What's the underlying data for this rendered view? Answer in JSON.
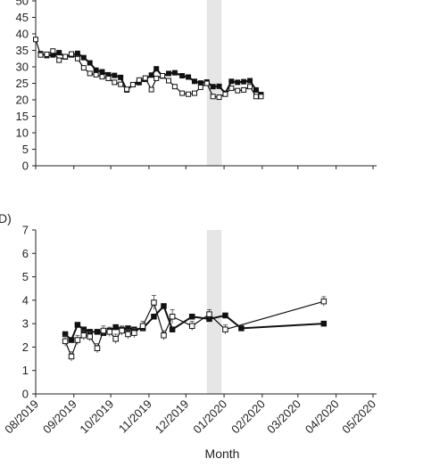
{
  "chart_data": [
    {
      "type": "line",
      "panel_label": "",
      "y_ticks": [
        "0",
        "5",
        "10",
        "15",
        "20",
        "25",
        "30",
        "35",
        "40",
        "45",
        "50"
      ],
      "ylim": [
        0,
        50
      ],
      "x_start": "2019-08-01",
      "x_end": "2020-05-01",
      "highlight_band": [
        "2019-12-18",
        "2019-12-30"
      ],
      "series": [
        {
          "marker": "filled-square",
          "color": "#111111",
          "points": [
            [
              "2019-08-05",
              34.0
            ],
            [
              "2019-08-10",
              33.4
            ],
            [
              "2019-08-15",
              33.6
            ],
            [
              "2019-08-20",
              34.3
            ],
            [
              "2019-08-25",
              33.0
            ],
            [
              "2019-08-30",
              33.6
            ],
            [
              "2019-09-04",
              34.1
            ],
            [
              "2019-09-09",
              32.8
            ],
            [
              "2019-09-14",
              31.2
            ],
            [
              "2019-09-19",
              29.0
            ],
            [
              "2019-09-24",
              28.5
            ],
            [
              "2019-09-29",
              27.6
            ],
            [
              "2019-10-04",
              27.4
            ],
            [
              "2019-10-09",
              26.8
            ],
            [
              "2019-10-14",
              23.0
            ],
            [
              "2019-10-19",
              24.6
            ],
            [
              "2019-10-24",
              25.2
            ],
            [
              "2019-10-29",
              26.2
            ],
            [
              "2019-11-03",
              27.5
            ],
            [
              "2019-11-07",
              29.4
            ],
            [
              "2019-11-12",
              27.2
            ],
            [
              "2019-11-17",
              28.0
            ],
            [
              "2019-11-22",
              28.2
            ],
            [
              "2019-11-28",
              27.3
            ],
            [
              "2019-12-03",
              26.9
            ],
            [
              "2019-12-08",
              25.6
            ],
            [
              "2019-12-13",
              25.1
            ],
            [
              "2019-12-18",
              25.4
            ],
            [
              "2019-12-23",
              24.0
            ],
            [
              "2019-12-28",
              24.1
            ],
            [
              "2020-01-02",
              22.0
            ],
            [
              "2020-01-07",
              25.6
            ],
            [
              "2020-01-12",
              25.3
            ],
            [
              "2020-01-17",
              25.5
            ],
            [
              "2020-01-22",
              25.8
            ],
            [
              "2020-01-27",
              23.0
            ],
            [
              "2020-01-31",
              21.6
            ]
          ]
        },
        {
          "marker": "open-square",
          "color": "#111111",
          "points": [
            [
              "2019-08-01",
              38.3
            ],
            [
              "2019-08-05",
              33.6
            ],
            [
              "2019-08-10",
              33.8
            ],
            [
              "2019-08-15",
              34.8
            ],
            [
              "2019-08-20",
              32.0
            ],
            [
              "2019-08-25",
              33.1
            ],
            [
              "2019-08-30",
              33.9
            ],
            [
              "2019-09-04",
              32.5
            ],
            [
              "2019-09-09",
              29.7
            ],
            [
              "2019-09-14",
              28.0
            ],
            [
              "2019-09-19",
              27.6
            ],
            [
              "2019-09-24",
              27.0
            ],
            [
              "2019-09-29",
              26.5
            ],
            [
              "2019-10-04",
              25.3
            ],
            [
              "2019-10-09",
              24.7
            ],
            [
              "2019-10-14",
              23.2
            ],
            [
              "2019-10-19",
              24.6
            ],
            [
              "2019-10-24",
              26.0
            ],
            [
              "2019-10-29",
              26.6
            ],
            [
              "2019-11-03",
              23.1
            ],
            [
              "2019-11-07",
              26.5
            ],
            [
              "2019-11-12",
              27.3
            ],
            [
              "2019-11-17",
              25.8
            ],
            [
              "2019-11-22",
              24.0
            ],
            [
              "2019-11-28",
              22.0
            ],
            [
              "2019-12-03",
              21.7
            ],
            [
              "2019-12-08",
              22.0
            ],
            [
              "2019-12-13",
              23.8
            ],
            [
              "2019-12-18",
              25.0
            ],
            [
              "2019-12-23",
              21.0
            ],
            [
              "2019-12-28",
              20.8
            ],
            [
              "2020-01-02",
              21.7
            ],
            [
              "2020-01-07",
              23.5
            ],
            [
              "2020-01-12",
              22.8
            ],
            [
              "2020-01-17",
              23.0
            ],
            [
              "2020-01-22",
              24.0
            ],
            [
              "2020-01-27",
              21.0
            ],
            [
              "2020-01-31",
              21.0
            ]
          ]
        }
      ]
    },
    {
      "type": "line",
      "panel_label": "D)",
      "y_ticks": [
        "0",
        "1",
        "2",
        "3",
        "4",
        "5",
        "6",
        "7"
      ],
      "ylim": [
        0,
        7
      ],
      "x_start": "2019-08-01",
      "x_end": "2020-05-01",
      "x_tick_labels": [
        "08/2019",
        "09/2019",
        "10/2019",
        "11/2019",
        "12/2019",
        "01/2020",
        "02/2020",
        "03/2020",
        "04/2020",
        "05/2020"
      ],
      "xlabel": "Month",
      "highlight_band": [
        "2019-12-18",
        "2019-12-30"
      ],
      "series": [
        {
          "marker": "filled-square",
          "color": "#111111",
          "points": [
            [
              "2019-08-25",
              2.55
            ],
            [
              "2019-08-30",
              2.3
            ],
            [
              "2019-09-04",
              2.95
            ],
            [
              "2019-09-09",
              2.75
            ],
            [
              "2019-09-14",
              2.65
            ],
            [
              "2019-09-20",
              2.65
            ],
            [
              "2019-09-25",
              2.6
            ],
            [
              "2019-09-30",
              2.7
            ],
            [
              "2019-10-05",
              2.85
            ],
            [
              "2019-10-10",
              2.75
            ],
            [
              "2019-10-15",
              2.8
            ],
            [
              "2019-10-20",
              2.75
            ],
            [
              "2019-10-27",
              2.8
            ],
            [
              "2019-11-05",
              3.3
            ],
            [
              "2019-11-13",
              3.75
            ],
            [
              "2019-11-20",
              2.75
            ],
            [
              "2019-12-06",
              3.3
            ],
            [
              "2019-12-20",
              3.2
            ],
            [
              "2020-01-02",
              3.35
            ],
            [
              "2020-01-15",
              2.8
            ],
            [
              "2020-03-22",
              3.0
            ]
          ]
        },
        {
          "marker": "open-square",
          "color": "#111111",
          "points": [
            [
              "2019-08-25",
              2.25
            ],
            [
              "2019-08-30",
              1.6
            ],
            [
              "2019-09-04",
              2.3
            ],
            [
              "2019-09-09",
              2.5
            ],
            [
              "2019-09-14",
              2.45
            ],
            [
              "2019-09-20",
              1.95
            ],
            [
              "2019-09-25",
              2.7
            ],
            [
              "2019-09-30",
              2.65
            ],
            [
              "2019-10-05",
              2.35
            ],
            [
              "2019-10-10",
              2.7
            ],
            [
              "2019-10-15",
              2.55
            ],
            [
              "2019-10-20",
              2.6
            ],
            [
              "2019-10-27",
              2.9
            ],
            [
              "2019-11-05",
              3.9
            ],
            [
              "2019-11-13",
              2.5
            ],
            [
              "2019-11-20",
              3.3
            ],
            [
              "2019-12-06",
              2.9
            ],
            [
              "2019-12-20",
              3.4
            ],
            [
              "2020-01-02",
              2.75
            ],
            [
              "2020-03-22",
              3.95
            ]
          ],
          "error": [
            0.22,
            0.2,
            0.2,
            0.2,
            0.2,
            0.2,
            0.2,
            0.2,
            0.2,
            0.2,
            0.2,
            0.2,
            0.2,
            0.3,
            0.2,
            0.3,
            0.2,
            0.2,
            0.2,
            0.2
          ]
        }
      ]
    }
  ]
}
